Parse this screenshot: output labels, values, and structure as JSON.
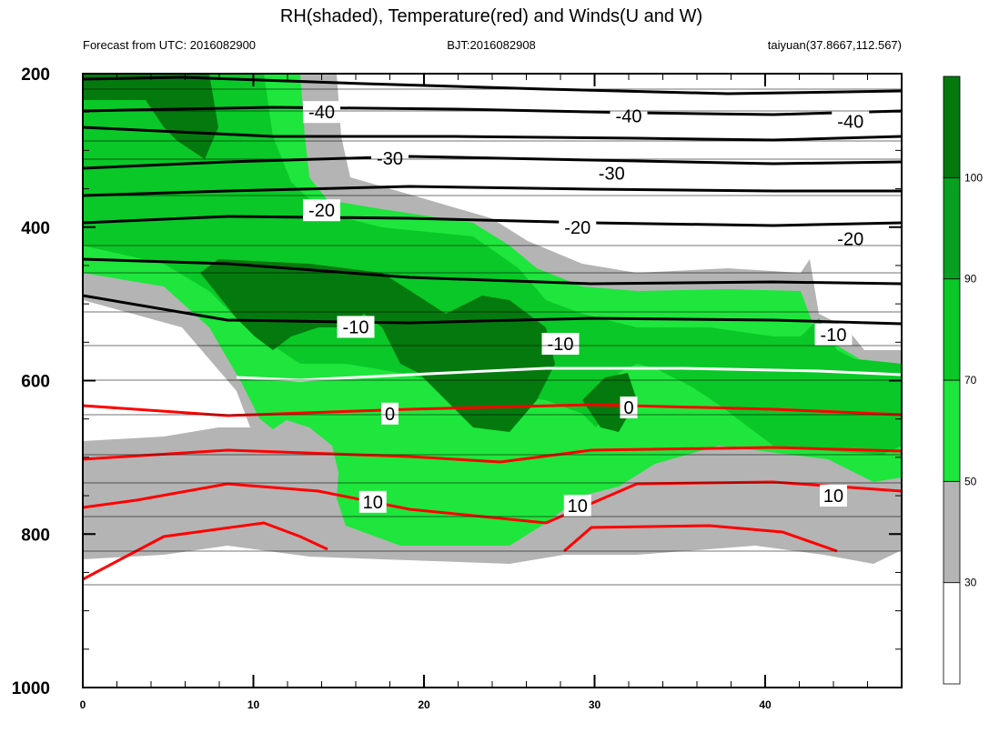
{
  "title": "RH(shaded), Temperature(red) and Winds(U and W)",
  "header": {
    "left": "Forecast from UTC: 2016082900",
    "center": "BJT:2016082908",
    "right": "taiyuan(37.8667,112.567)"
  },
  "colors": {
    "rh_30_50": "#b4b4b4",
    "rh_50_70": "#1ee63c",
    "rh_70_90": "#0ac828",
    "rh_90_100": "#08a020",
    "rh_100": "#047a0e",
    "temp_warm": "#ff0000",
    "temp_zero": "#ffffff",
    "temp_cold": "#000000"
  },
  "chart_data": {
    "type": "contour",
    "x_label": "",
    "y_label": "",
    "xlim": [
      0,
      48
    ],
    "ylim": [
      1000,
      200
    ],
    "y_axis": "pressure (reversed)",
    "x_ticks": [
      "0",
      "10",
      "20",
      "30",
      "40"
    ],
    "y_ticks": [
      "200",
      "400",
      "600",
      "800",
      "1000"
    ],
    "colorbar": {
      "levels": [
        "30",
        "50",
        "70",
        "90",
        "100"
      ],
      "fill_colors": [
        "#ffffff",
        "#b4b4b4",
        "#1ee63c",
        "#0ac828",
        "#08a020",
        "#047a0e"
      ]
    },
    "temperature_contour_labels": [
      {
        "label": "-40",
        "x": 14,
        "p": 250
      },
      {
        "label": "-40",
        "x": 32,
        "p": 255
      },
      {
        "label": "-40",
        "x": 45,
        "p": 262
      },
      {
        "label": "-30",
        "x": 18,
        "p": 310
      },
      {
        "label": "-30",
        "x": 31,
        "p": 330
      },
      {
        "label": "-20",
        "x": 14,
        "p": 378
      },
      {
        "label": "-20",
        "x": 29,
        "p": 400
      },
      {
        "label": "-20",
        "x": 45,
        "p": 415
      },
      {
        "label": "-10",
        "x": 16,
        "p": 530
      },
      {
        "label": "-10",
        "x": 28,
        "p": 552
      },
      {
        "label": "-10",
        "x": 44,
        "p": 540
      },
      {
        "label": "0",
        "x": 18,
        "p": 643
      },
      {
        "label": "0",
        "x": 32,
        "p": 635
      },
      {
        "label": "10",
        "x": 17,
        "p": 758
      },
      {
        "label": "10",
        "x": 29,
        "p": 763
      },
      {
        "label": "10",
        "x": 44,
        "p": 750
      }
    ]
  }
}
